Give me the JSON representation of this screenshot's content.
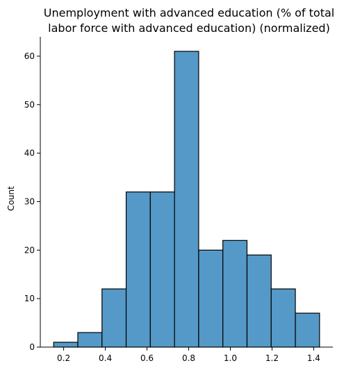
{
  "chart_data": {
    "type": "bar",
    "title_lines": [
      "Unemployment with advanced education (% of total",
      "labor force with advanced education) (normalized)"
    ],
    "xlabel": "",
    "ylabel": "Count",
    "bin_edges": [
      0.152,
      0.268,
      0.384,
      0.5,
      0.616,
      0.732,
      0.848,
      0.964,
      1.08,
      1.196,
      1.312,
      1.428
    ],
    "counts": [
      1,
      3,
      12,
      32,
      32,
      61,
      20,
      22,
      19,
      12,
      7
    ],
    "xlim": [
      0.088,
      1.492
    ],
    "ylim": [
      0,
      64
    ],
    "x_ticks": [
      0.2,
      0.4,
      0.6,
      0.8,
      1.0,
      1.2,
      1.4
    ],
    "x_tick_labels": [
      "0.2",
      "0.4",
      "0.6",
      "0.8",
      "1.0",
      "1.2",
      "1.4"
    ],
    "y_ticks": [
      0,
      10,
      20,
      30,
      40,
      50,
      60
    ],
    "y_tick_labels": [
      "0",
      "10",
      "20",
      "30",
      "40",
      "50",
      "60"
    ],
    "grid": false,
    "bar_color": "#5499C7",
    "edge_color": "#000000",
    "spines": "left-bottom"
  }
}
